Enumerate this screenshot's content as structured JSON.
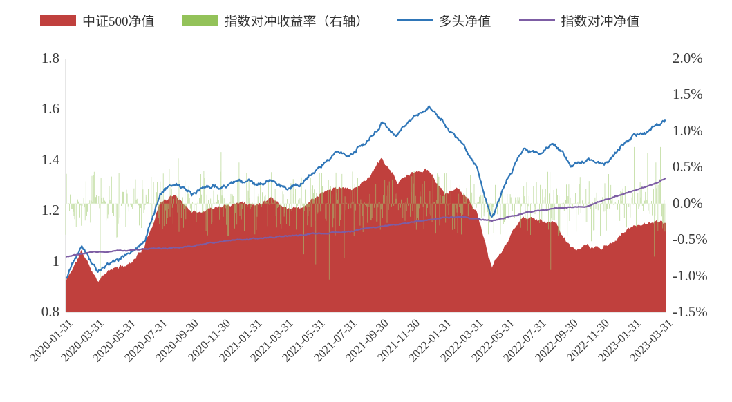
{
  "chart_data": {
    "type": "mixed",
    "title": "",
    "left_axis": {
      "min": 0.8,
      "max": 1.8,
      "ticks": [
        {
          "v": 1.8,
          "label": "1.8"
        },
        {
          "v": 1.6,
          "label": "1.6"
        },
        {
          "v": 1.4,
          "label": "1.4"
        },
        {
          "v": 1.2,
          "label": "1.2"
        },
        {
          "v": 1.0,
          "label": "1"
        },
        {
          "v": 0.8,
          "label": "0.8"
        }
      ]
    },
    "right_axis": {
      "min": -0.015,
      "max": 0.02,
      "ticks": [
        {
          "v": 0.02,
          "label": "2.0%"
        },
        {
          "v": 0.015,
          "label": "1.5%"
        },
        {
          "v": 0.01,
          "label": "1.0%"
        },
        {
          "v": 0.005,
          "label": "0.5%"
        },
        {
          "v": 0.0,
          "label": "0.0%"
        },
        {
          "v": -0.005,
          "label": "-0.5%"
        },
        {
          "v": -0.01,
          "label": "-1.0%"
        },
        {
          "v": -0.015,
          "label": "-1.5%"
        }
      ]
    },
    "x_axis": {
      "tick_step_months": 2,
      "ticks": [
        {
          "m": 0,
          "label": "2020-01-31"
        },
        {
          "m": 2,
          "label": "2020-03-31"
        },
        {
          "m": 4,
          "label": "2020-05-31"
        },
        {
          "m": 6,
          "label": "2020-07-31"
        },
        {
          "m": 8,
          "label": "2020-09-30"
        },
        {
          "m": 10,
          "label": "2020-11-30"
        },
        {
          "m": 12,
          "label": "2021-01-31"
        },
        {
          "m": 14,
          "label": "2021-03-31"
        },
        {
          "m": 16,
          "label": "2021-05-31"
        },
        {
          "m": 18,
          "label": "2021-07-31"
        },
        {
          "m": 20,
          "label": "2021-09-30"
        },
        {
          "m": 22,
          "label": "2021-11-30"
        },
        {
          "m": 24,
          "label": "2022-01-31"
        },
        {
          "m": 26,
          "label": "2022-03-31"
        },
        {
          "m": 28,
          "label": "2022-05-31"
        },
        {
          "m": 30,
          "label": "2022-07-31"
        },
        {
          "m": 32,
          "label": "2022-09-30"
        },
        {
          "m": 34,
          "label": "2022-11-30"
        },
        {
          "m": 36,
          "label": "2023-01-31"
        },
        {
          "m": 38,
          "label": "2023-03-31"
        }
      ]
    },
    "anchor_months": [
      "2020-01",
      "2020-02",
      "2020-03",
      "2020-04",
      "2020-05",
      "2020-06",
      "2020-07",
      "2020-08",
      "2020-09",
      "2020-10",
      "2020-11",
      "2020-12",
      "2021-01",
      "2021-02",
      "2021-03",
      "2021-04",
      "2021-05",
      "2021-06",
      "2021-07",
      "2021-08",
      "2021-09",
      "2021-10",
      "2021-11",
      "2021-12",
      "2022-01",
      "2022-02",
      "2022-03",
      "2022-04",
      "2022-05",
      "2022-06",
      "2022-07",
      "2022-08",
      "2022-09",
      "2022-10",
      "2022-11",
      "2022-12",
      "2023-01",
      "2023-02",
      "2023-03"
    ],
    "series": [
      {
        "name": "中证500净值",
        "type": "area",
        "axis": "left",
        "color": "#c0403d",
        "monthly_values": [
          0.92,
          1.04,
          0.93,
          0.97,
          0.99,
          1.06,
          1.24,
          1.26,
          1.2,
          1.21,
          1.23,
          1.24,
          1.22,
          1.26,
          1.21,
          1.22,
          1.26,
          1.29,
          1.28,
          1.32,
          1.4,
          1.31,
          1.35,
          1.36,
          1.27,
          1.29,
          1.2,
          0.97,
          1.08,
          1.18,
          1.16,
          1.15,
          1.05,
          1.06,
          1.05,
          1.1,
          1.14,
          1.16,
          1.15
        ]
      },
      {
        "name": "指数对冲收益率（右轴）",
        "type": "bar",
        "axis": "right",
        "color": "#93c259",
        "bar_color": "#a2cc74",
        "summary": {
          "unit": "%",
          "typical_range": [
            -0.5,
            0.5
          ],
          "max_spike": 0.78,
          "min_spike": -1.05,
          "description": "dense daily hedge-return bars oscillating around 0%"
        }
      },
      {
        "name": "多头净值",
        "type": "line",
        "axis": "left",
        "color": "#2f76b8",
        "monthly_values": [
          0.93,
          1.06,
          0.96,
          1.0,
          1.03,
          1.08,
          1.27,
          1.31,
          1.27,
          1.29,
          1.3,
          1.32,
          1.3,
          1.33,
          1.29,
          1.32,
          1.37,
          1.42,
          1.43,
          1.47,
          1.55,
          1.5,
          1.57,
          1.61,
          1.54,
          1.47,
          1.38,
          1.17,
          1.33,
          1.44,
          1.43,
          1.46,
          1.38,
          1.4,
          1.38,
          1.44,
          1.5,
          1.52,
          1.56
        ]
      },
      {
        "name": "指数对冲净值",
        "type": "line",
        "axis": "left",
        "color": "#7d5da4",
        "monthly_values": [
          1.02,
          1.03,
          1.035,
          1.04,
          1.045,
          1.05,
          1.05,
          1.055,
          1.06,
          1.07,
          1.08,
          1.085,
          1.09,
          1.095,
          1.1,
          1.105,
          1.11,
          1.115,
          1.12,
          1.13,
          1.14,
          1.145,
          1.155,
          1.165,
          1.175,
          1.175,
          1.17,
          1.16,
          1.175,
          1.19,
          1.2,
          1.21,
          1.215,
          1.22,
          1.24,
          1.26,
          1.28,
          1.3,
          1.33
        ]
      }
    ],
    "render_hints": {
      "samples": 820,
      "decay": 0.86,
      "axis_color": "#cccccc",
      "seeds": {
        "area": 11,
        "long": 5,
        "hedge": 9
      },
      "noise": {
        "area": 0.01,
        "long": 0.011,
        "hedge": 0.0028,
        "hf": 0.0045,
        "hf_small": 0.0012
      },
      "bars": {
        "seed": 7,
        "count": 800,
        "amp": 0.0045,
        "spike_prob": 0.06,
        "spike_mult": 2.4,
        "min": -0.0105,
        "max": 0.0078,
        "width": 0.8,
        "opacity": 0.7
      }
    }
  }
}
